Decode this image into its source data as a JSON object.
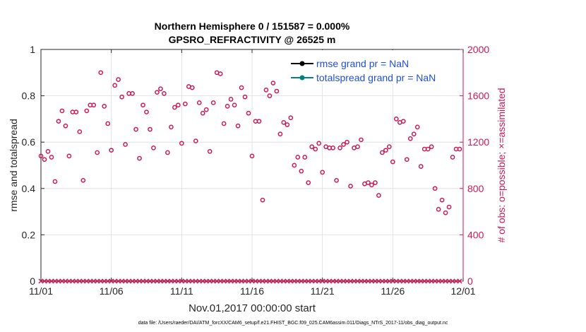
{
  "chart_data": {
    "type": "scatter",
    "title": "Northern Hemisphere 0 / 151587 = 0.000%",
    "subtitle": "GPSRO_REFRACTIVITY @ 26525 m",
    "xlabel": "Nov.01,2017 00:00:00 start",
    "ylabel_left": "rmse and totalspread",
    "ylabel_right": "# of obs: o=possible; ×=assimilated",
    "footer": "data file: /Users/raeder/DAI/ATM_forcXX/CAM6_setup/f.e21.FHIST_BGC.f09_025.CAM6assim.011/Diags_NTrS_2017-11/obs_diag_output.nc",
    "xlim": [
      0,
      30
    ],
    "ylim_left": [
      0,
      1
    ],
    "ylim_right": [
      0,
      2000
    ],
    "x_ticks": [
      0,
      5,
      10,
      15,
      20,
      25,
      30
    ],
    "x_tick_labels": [
      "11/01",
      "11/06",
      "11/11",
      "11/16",
      "11/21",
      "11/26",
      "12/01"
    ],
    "y_left_ticks": [
      0,
      0.2,
      0.4,
      0.6,
      0.8,
      1
    ],
    "y_left_tick_labels": [
      "0",
      "0.2",
      "0.4",
      "0.6",
      "0.8",
      "1"
    ],
    "y_right_ticks": [
      0,
      400,
      800,
      1200,
      1600,
      2000
    ],
    "y_right_tick_labels": [
      "0",
      "400",
      "800",
      "1200",
      "1600",
      "2000"
    ],
    "grid": true,
    "legend_position": "top-right",
    "legend": [
      {
        "label": "rmse grand pr = NaN",
        "color": "#000000"
      },
      {
        "label": "totalspread grand pr = NaN",
        "color": "#00827f"
      }
    ],
    "colors": {
      "obs": "#cc1a55",
      "axis_right": "#cc1a55",
      "legend_text": "#1f4fd6"
    },
    "series": [
      {
        "name": "possible",
        "marker": "circle",
        "axis": "right",
        "x": [
          0.0,
          0.25,
          0.5,
          0.75,
          1.0,
          1.25,
          1.5,
          1.75,
          2.0,
          2.25,
          2.5,
          2.75,
          3.0,
          3.25,
          3.5,
          3.75,
          4.0,
          4.25,
          4.5,
          4.75,
          5.0,
          5.25,
          5.5,
          5.75,
          6.0,
          6.25,
          6.5,
          6.75,
          7.0,
          7.25,
          7.5,
          7.75,
          8.0,
          8.25,
          8.5,
          8.75,
          9.0,
          9.25,
          9.5,
          9.75,
          10.0,
          10.25,
          10.5,
          10.75,
          11.0,
          11.25,
          11.5,
          11.75,
          12.0,
          12.25,
          12.5,
          12.75,
          13.0,
          13.25,
          13.5,
          13.75,
          14.0,
          14.25,
          14.5,
          14.75,
          15.0,
          15.25,
          15.5,
          15.75,
          16.0,
          16.25,
          16.5,
          16.75,
          17.0,
          17.25,
          17.5,
          17.75,
          18.0,
          18.25,
          18.5,
          18.75,
          19.0,
          19.25,
          19.5,
          19.75,
          20.0,
          20.25,
          20.5,
          20.75,
          21.0,
          21.25,
          21.5,
          21.75,
          22.0,
          22.25,
          22.5,
          22.75,
          23.0,
          23.25,
          23.5,
          23.75,
          24.0,
          24.25,
          24.5,
          24.75,
          25.0,
          25.25,
          25.5,
          25.75,
          26.0,
          26.25,
          26.5,
          26.75,
          27.0,
          27.25,
          27.5,
          27.75,
          28.0,
          28.25,
          28.5,
          28.75,
          29.0,
          29.25,
          29.5,
          29.75
        ],
        "values": [
          1080,
          1050,
          1120,
          1070,
          860,
          1380,
          1470,
          1340,
          1080,
          1460,
          1460,
          1290,
          870,
          1470,
          1520,
          1520,
          1110,
          1800,
          1510,
          1360,
          1130,
          1690,
          1740,
          1590,
          1180,
          1620,
          1620,
          1310,
          1060,
          1520,
          1460,
          1310,
          1150,
          1630,
          1660,
          1620,
          1110,
          1330,
          1500,
          1520,
          1190,
          1530,
          1680,
          1670,
          1210,
          1540,
          1450,
          1480,
          1120,
          1540,
          1800,
          1790,
          1360,
          1510,
          1570,
          1520,
          1340,
          1670,
          1590,
          1450,
          1080,
          1380,
          1380,
          700,
          1650,
          1600,
          1710,
          1640,
          1270,
          1370,
          1350,
          1410,
          1000,
          1070,
          950,
          1070,
          850,
          1160,
          1140,
          1190,
          940,
          1160,
          1150,
          1150,
          870,
          1150,
          1180,
          1200,
          820,
          1150,
          1160,
          1220,
          840,
          850,
          830,
          850,
          740,
          1110,
          1130,
          1160,
          1030,
          1400,
          1370,
          1380,
          1050,
          1230,
          1270,
          1330,
          990,
          1140,
          1140,
          1160,
          800,
          620,
          700,
          590,
          640,
          1070,
          1140,
          1140
        ]
      },
      {
        "name": "assimilated",
        "marker": "x",
        "axis": "right",
        "values_all": 0
      },
      {
        "name": "rmse grand pr = NaN",
        "axis": "left",
        "values": []
      },
      {
        "name": "totalspread grand pr = NaN",
        "axis": "left",
        "values": []
      }
    ]
  }
}
